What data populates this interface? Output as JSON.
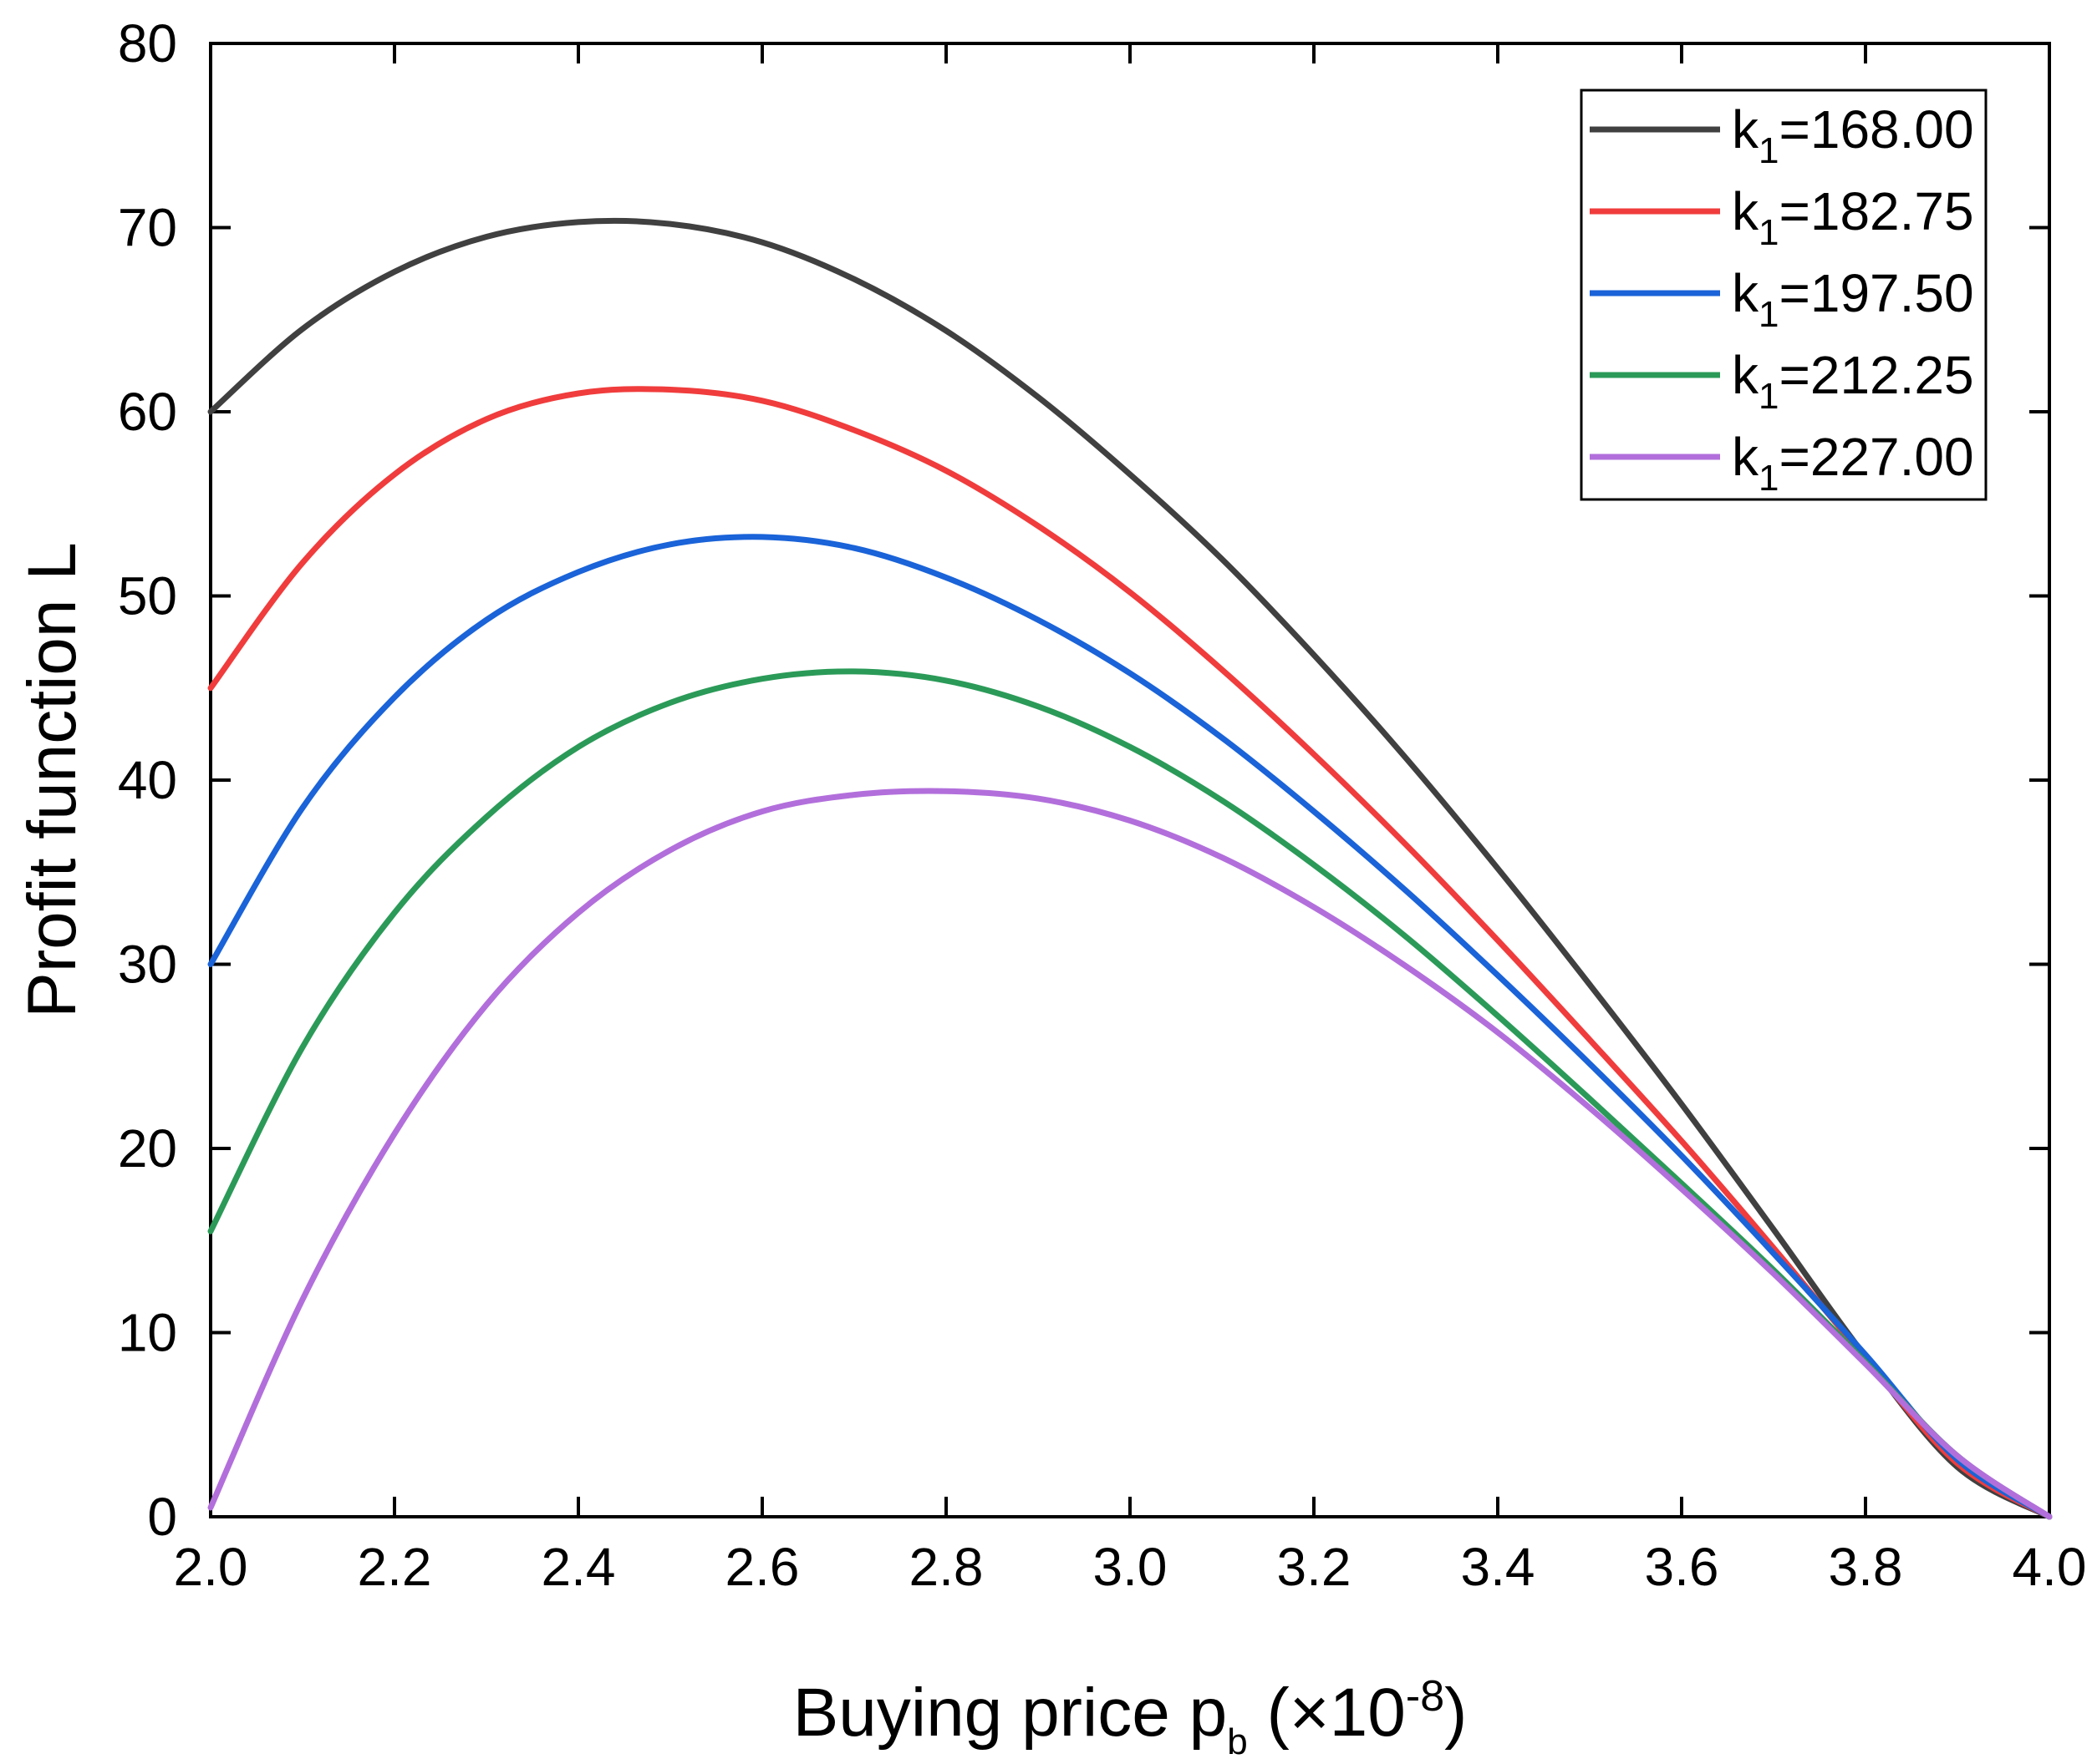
{
  "chart_data": {
    "type": "line",
    "title": "",
    "xlabel": {
      "main": "Buying price p",
      "sub": "b",
      "suffix_open": " (×10",
      "sup": "-8",
      "suffix_close": ")"
    },
    "ylabel": "Profit function L",
    "xlim": [
      2.0,
      4.0
    ],
    "ylim": [
      0,
      80
    ],
    "xticks": [
      "2.0",
      "2.2",
      "2.4",
      "2.6",
      "2.8",
      "3.0",
      "3.2",
      "3.4",
      "3.6",
      "3.8",
      "4.0"
    ],
    "yticks": [
      "0",
      "10",
      "20",
      "30",
      "40",
      "50",
      "60",
      "70",
      "80"
    ],
    "grid": false,
    "legend_position": "top-right",
    "x": [
      2.0,
      2.1,
      2.2,
      2.3,
      2.4,
      2.5,
      2.6,
      2.7,
      2.8,
      2.9,
      3.0,
      3.1,
      3.2,
      3.3,
      3.4,
      3.5,
      3.6,
      3.7,
      3.8,
      3.9,
      4.0
    ],
    "series": [
      {
        "legend_main": "k",
        "legend_sub": "1",
        "legend_value": "=168.00",
        "color": "#404040",
        "values": [
          60.0,
          64.5,
          67.6,
          69.5,
          70.3,
          70.2,
          69.2,
          67.2,
          64.4,
          60.8,
          56.6,
          52.0,
          46.8,
          41.2,
          35.2,
          28.9,
          22.4,
          15.6,
          8.7,
          2.7,
          0.0
        ]
      },
      {
        "legend_main": "k",
        "legend_sub": "1",
        "legend_value": "=182.75",
        "color": "#f03c3c",
        "values": [
          45.0,
          51.8,
          56.6,
          59.6,
          61.0,
          61.2,
          60.6,
          59.0,
          56.8,
          53.8,
          50.2,
          46.0,
          41.4,
          36.5,
          31.3,
          25.9,
          20.4,
          14.6,
          8.6,
          2.9,
          0.0
        ]
      },
      {
        "legend_main": "k",
        "legend_sub": "1",
        "legend_value": "=197.50",
        "color": "#1a63d8",
        "values": [
          30.0,
          38.5,
          44.5,
          48.7,
          51.3,
          52.8,
          53.2,
          52.6,
          51.0,
          48.7,
          45.8,
          42.3,
          38.3,
          34.0,
          29.4,
          24.6,
          19.6,
          14.3,
          8.8,
          3.1,
          0.0
        ]
      },
      {
        "legend_main": "k",
        "legend_sub": "1",
        "legend_value": "=212.25",
        "color": "#2b9a58",
        "values": [
          15.5,
          25.5,
          32.8,
          38.0,
          41.8,
          44.2,
          45.5,
          45.9,
          45.4,
          44.0,
          41.8,
          38.9,
          35.4,
          31.5,
          27.2,
          22.7,
          18.1,
          13.4,
          8.4,
          3.3,
          0.0
        ]
      },
      {
        "legend_main": "k",
        "legend_sub": "1",
        "legend_value": "=227.00",
        "color": "#b26fdb",
        "values": [
          0.5,
          11.8,
          20.8,
          27.8,
          32.8,
          36.2,
          38.3,
          39.2,
          39.4,
          39.0,
          37.8,
          35.8,
          33.1,
          29.9,
          26.3,
          22.2,
          17.8,
          13.2,
          8.3,
          3.3,
          0.0
        ]
      }
    ]
  }
}
